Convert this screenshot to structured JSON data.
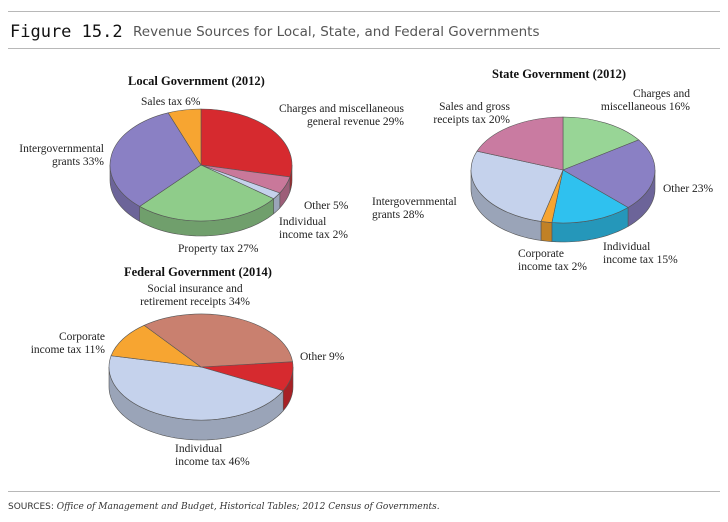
{
  "figure": {
    "label": "Figure 15.2",
    "caption": "Revenue Sources for Local, State, and Federal Governments"
  },
  "sources": {
    "prefix": "SOURCES: ",
    "text": "Office of Management and Budget, Historical Tables; 2012 Census of Governments."
  },
  "chart_data": [
    {
      "type": "pie",
      "title": "Local Government (2012)",
      "slices": [
        {
          "label": "Charges and miscellaneous\ngeneral revenue 29%",
          "value": 29,
          "color": "#d62a2f"
        },
        {
          "label": "Other 5%",
          "value": 5,
          "color": "#c9789a"
        },
        {
          "label": "Individual\nincome tax 2%",
          "value": 2,
          "color": "#c5d2ec"
        },
        {
          "label": "Property tax 27%",
          "value": 27,
          "color": "#8fcc8a"
        },
        {
          "label": "Intergovernmental\ngrants 33%",
          "value": 33,
          "color": "#8a80c4"
        },
        {
          "label": "Sales tax 6%",
          "value": 6,
          "color": "#f7a531"
        }
      ]
    },
    {
      "type": "pie",
      "title": "State Government (2012)",
      "slices": [
        {
          "label": "Charges and\nmiscellaneous 16%",
          "value": 16,
          "color": "#98d596"
        },
        {
          "label": "Other 23%",
          "value": 23,
          "color": "#8a80c4"
        },
        {
          "label": "Individual\nincome tax 15%",
          "value": 15,
          "color": "#2fc1ef"
        },
        {
          "label": "Corporate\nincome tax 2%",
          "value": 2,
          "color": "#f7a531"
        },
        {
          "label": "Intergovernmental\ngrants 28%",
          "value": 28,
          "color": "#c5d2ec"
        },
        {
          "label": "Sales and gross\nreceipts tax 20%",
          "value": 20,
          "color": "#c97ba1"
        }
      ]
    },
    {
      "type": "pie",
      "title": "Federal Government (2014)",
      "slices": [
        {
          "label": "Other 9%",
          "value": 9,
          "color": "#d62a2f"
        },
        {
          "label": "Individual\nincome tax 46%",
          "value": 46,
          "color": "#c5d2ec"
        },
        {
          "label": "Corporate\nincome tax 11%",
          "value": 11,
          "color": "#f7a531"
        },
        {
          "label": "Social insurance and\nretirement receipts 34%",
          "value": 34,
          "color": "#c9806f"
        }
      ]
    }
  ]
}
